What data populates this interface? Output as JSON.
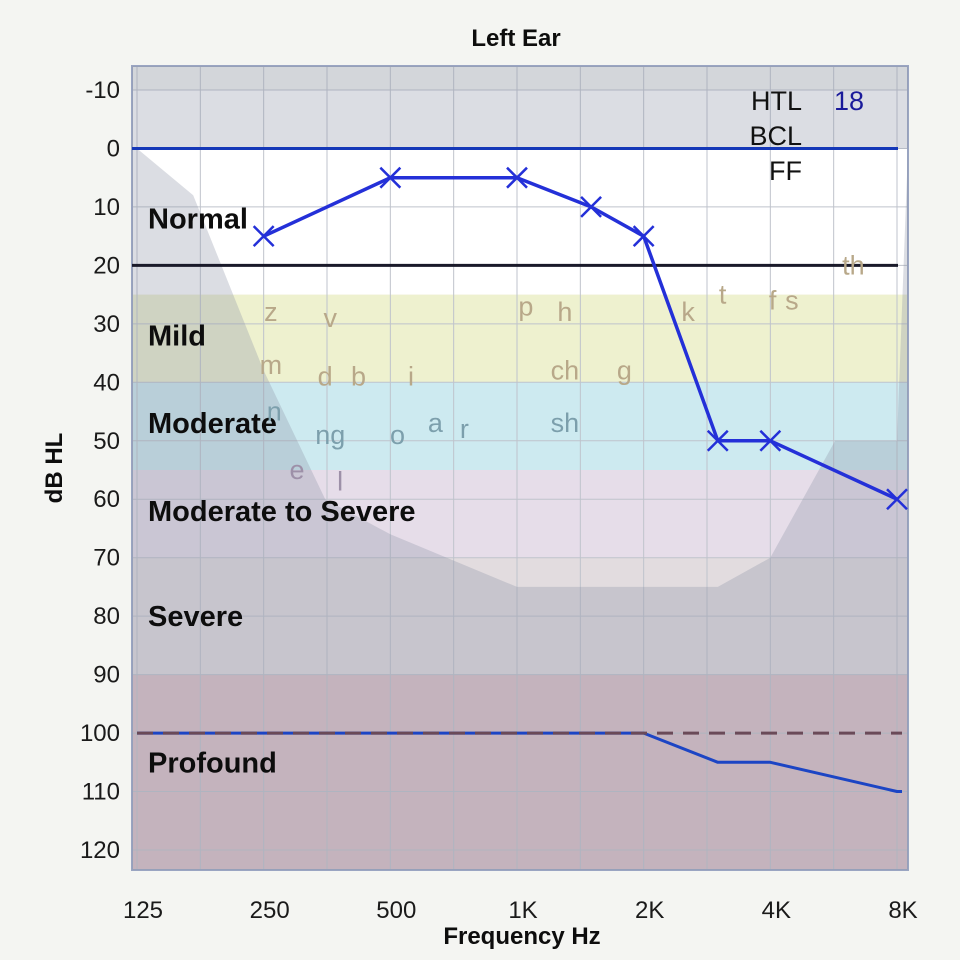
{
  "chart_data": {
    "type": "line",
    "title": "Left Ear",
    "xlabel": "Frequency Hz",
    "ylabel": "dB HL",
    "x_scale": "log2",
    "x_ticks": [
      {
        "hz": 125,
        "label": "125"
      },
      {
        "hz": 250,
        "label": "250"
      },
      {
        "hz": 500,
        "label": "500"
      },
      {
        "hz": 1000,
        "label": "1K"
      },
      {
        "hz": 2000,
        "label": "2K"
      },
      {
        "hz": 4000,
        "label": "4K"
      },
      {
        "hz": 8000,
        "label": "8K"
      }
    ],
    "x_range": [
      125,
      8000
    ],
    "y_ticks": [
      "-10",
      "0",
      "10",
      "20",
      "30",
      "40",
      "50",
      "60",
      "70",
      "80",
      "90",
      "100",
      "110",
      "120"
    ],
    "y_range": [
      -10,
      120
    ],
    "y_inverted": true,
    "grid": true,
    "severity_bands": [
      {
        "label": "Normal",
        "from": -10,
        "to": 25,
        "color": "#ffffff"
      },
      {
        "label": "Mild",
        "from": 25,
        "to": 40,
        "color": "#eef1cf"
      },
      {
        "label": "Moderate",
        "from": 40,
        "to": 55,
        "color": "#cdeaf0"
      },
      {
        "label": "Moderate to Severe",
        "from": 55,
        "to": 70,
        "color": "#e6dde9"
      },
      {
        "label": "Severe",
        "from": 70,
        "to": 90,
        "color": "#e2dcdf"
      },
      {
        "label": "Profound",
        "from": 90,
        "to": 125,
        "color": "#ddc2c7"
      }
    ],
    "band_label_levels": [
      {
        "label": "Normal",
        "y": 12
      },
      {
        "label": "Mild",
        "y": 32
      },
      {
        "label": "Moderate",
        "y": 47
      },
      {
        "label": "Moderate to Severe",
        "y": 62
      },
      {
        "label": "Severe",
        "y": 80
      },
      {
        "label": "Profound",
        "y": 105
      }
    ],
    "reference_lines": [
      {
        "y": 0,
        "color": "#1538b8"
      },
      {
        "y": 20,
        "color": "#1a1a2a"
      }
    ],
    "speech_banana": [
      {
        "hz": 125,
        "db": 0
      },
      {
        "hz": 170,
        "db": 8
      },
      {
        "hz": 250,
        "db": 38
      },
      {
        "hz": 350,
        "db": 60
      },
      {
        "hz": 500,
        "db": 66
      },
      {
        "hz": 1000,
        "db": 75
      },
      {
        "hz": 2000,
        "db": 75
      },
      {
        "hz": 3000,
        "db": 75
      },
      {
        "hz": 4000,
        "db": 70
      },
      {
        "hz": 5700,
        "db": 50
      },
      {
        "hz": 8000,
        "db": 50
      },
      {
        "hz": 8500,
        "db": 0
      }
    ],
    "series": [
      {
        "type": "threshold",
        "color": "#2430d8",
        "marker": "x",
        "points": [
          {
            "hz": 250,
            "db": 15
          },
          {
            "hz": 500,
            "db": 5
          },
          {
            "hz": 1000,
            "db": 5
          },
          {
            "hz": 1500,
            "db": 10
          },
          {
            "hz": 2000,
            "db": 15
          },
          {
            "hz": 3000,
            "db": 50
          },
          {
            "hz": 4000,
            "db": 50
          },
          {
            "hz": 8000,
            "db": 60
          }
        ]
      },
      {
        "type": "limit",
        "color": "#1c45c4",
        "marker": "none",
        "points": [
          {
            "hz": 125,
            "db": 100
          },
          {
            "hz": 2000,
            "db": 100
          },
          {
            "hz": 3000,
            "db": 105
          },
          {
            "hz": 4000,
            "db": 105
          },
          {
            "hz": 8000,
            "db": 110
          },
          {
            "hz": 9000,
            "db": 110
          }
        ]
      },
      {
        "type": "limit-dashed",
        "color": "#6a4a58",
        "marker": "none",
        "points": [
          {
            "hz": 125,
            "db": 100
          },
          {
            "hz": 9000,
            "db": 100
          }
        ]
      }
    ],
    "phonemes": [
      {
        "text": "z",
        "hz": 260,
        "db": 28,
        "color": "#b8a889"
      },
      {
        "text": "v",
        "hz": 360,
        "db": 29,
        "color": "#b8a889"
      },
      {
        "text": "m",
        "hz": 260,
        "db": 37,
        "color": "#b8a889"
      },
      {
        "text": "d",
        "hz": 350,
        "db": 39,
        "color": "#b8a889"
      },
      {
        "text": "b",
        "hz": 420,
        "db": 39,
        "color": "#b8a889"
      },
      {
        "text": "i",
        "hz": 560,
        "db": 39,
        "color": "#b8a889"
      },
      {
        "text": "n",
        "hz": 265,
        "db": 45,
        "color": "#7c9fac"
      },
      {
        "text": "ng",
        "hz": 360,
        "db": 49,
        "color": "#7c9fac"
      },
      {
        "text": "o",
        "hz": 520,
        "db": 49,
        "color": "#7c9fac"
      },
      {
        "text": "a",
        "hz": 640,
        "db": 47,
        "color": "#7c9fac"
      },
      {
        "text": "r",
        "hz": 750,
        "db": 48,
        "color": "#7c9fac"
      },
      {
        "text": "e",
        "hz": 300,
        "db": 55,
        "color": "#9d90a8"
      },
      {
        "text": "l",
        "hz": 380,
        "db": 57,
        "color": "#9d90a8"
      },
      {
        "text": "p",
        "hz": 1050,
        "db": 27,
        "color": "#b8a889"
      },
      {
        "text": "h",
        "hz": 1300,
        "db": 28,
        "color": "#b8a889"
      },
      {
        "text": "ch",
        "hz": 1300,
        "db": 38,
        "color": "#b8a889"
      },
      {
        "text": "g",
        "hz": 1800,
        "db": 38,
        "color": "#b8a889"
      },
      {
        "text": "sh",
        "hz": 1300,
        "db": 47,
        "color": "#7c9fac"
      },
      {
        "text": "k",
        "hz": 2550,
        "db": 28,
        "color": "#b8a889"
      },
      {
        "text": "t",
        "hz": 3080,
        "db": 25,
        "color": "#b8a889"
      },
      {
        "text": "f",
        "hz": 4050,
        "db": 26,
        "color": "#b8a889"
      },
      {
        "text": "s",
        "hz": 4500,
        "db": 26,
        "color": "#b8a889"
      },
      {
        "text": "th",
        "hz": 6300,
        "db": 20,
        "color": "#b8a889"
      }
    ],
    "legend": [
      {
        "label": "HTL",
        "value": "18"
      },
      {
        "label": "BCL",
        "value": ""
      },
      {
        "label": "FF",
        "value": ""
      }
    ],
    "legend_position": "top-right",
    "colors": {
      "threshold": "#2430d8",
      "grid": "#bfc3cc",
      "banana": "#8e96a8"
    }
  }
}
